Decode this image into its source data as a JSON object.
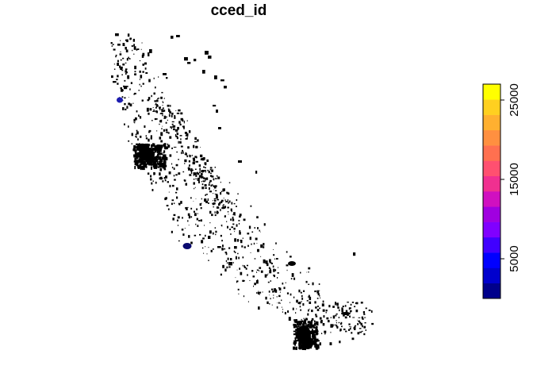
{
  "map": {
    "title": "cced_id",
    "feature_color": "#000000",
    "highlight_colors": [
      "#1c1cb0",
      "#0b0b70"
    ]
  },
  "legend": {
    "range": [
      0,
      27000
    ],
    "ticks": [
      {
        "value": 5000,
        "label": "5000"
      },
      {
        "value": 15000,
        "label": "15000"
      },
      {
        "value": 25000,
        "label": "25000"
      }
    ],
    "colors": [
      "#00008B",
      "#0000CD",
      "#0000FF",
      "#4000FF",
      "#8000FF",
      "#A000E0",
      "#D010C0",
      "#F03090",
      "#FF5070",
      "#FF7050",
      "#FF9040",
      "#FFB030",
      "#FFD020",
      "#FFFF00"
    ]
  }
}
